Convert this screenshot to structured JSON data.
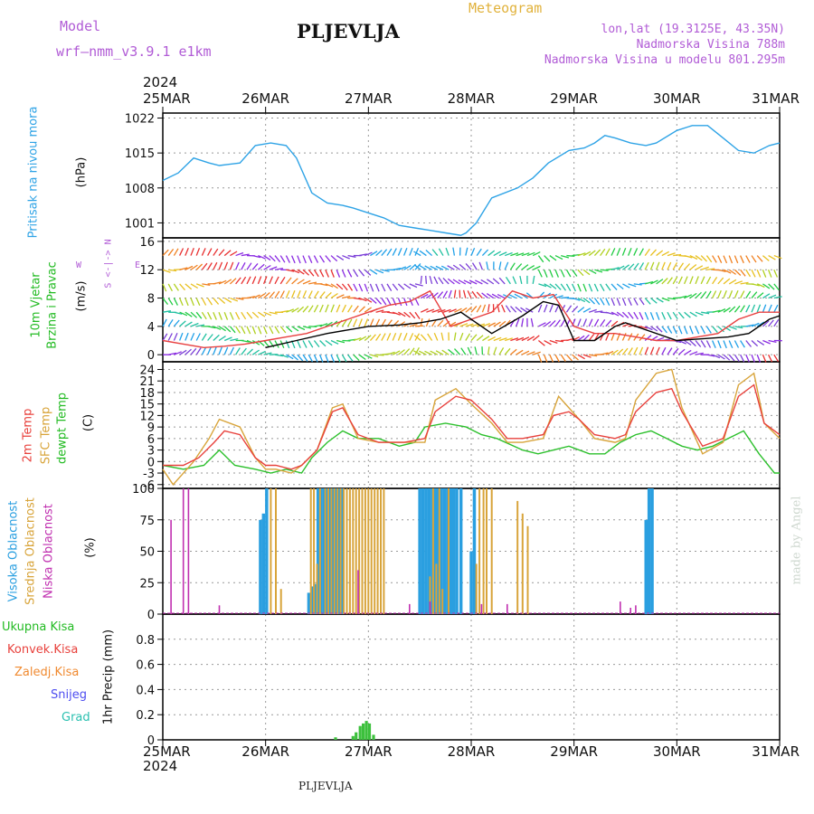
{
  "header": {
    "model_label": "Model",
    "model_name": "wrf—nmm_v3.9.1  e1km",
    "title": "PLJEVLJA",
    "meteogram": "Meteogram",
    "coords": "lon,lat (19.3125E, 43.35N)",
    "elevation": "Nadmorska Visina 788m",
    "model_elevation": "Nadmorska Visina u modelu 801.295m",
    "year_top": "2024",
    "year_bottom": "2024",
    "footer_station": "PLJEVLJA",
    "signature": "made by Angel"
  },
  "dates": [
    "25MAR",
    "26MAR",
    "27MAR",
    "28MAR",
    "29MAR",
    "30MAR",
    "31MAR"
  ],
  "labels": {
    "p1_name": "Pritisak na nivou mora",
    "p1_unit": "(hPa)",
    "p2_name_a": "10m Vjetar",
    "p2_name_b": "Brzina i Pravac",
    "p2_unit": "(m/s)",
    "compass_ns": "S <-|-> N",
    "compass_w": "W",
    "compass_e": "E",
    "p3_a": "2m Temp",
    "p3_b": "SFC Temp",
    "p3_c": "dewpt Temp",
    "p3_unit": "(C)",
    "p4_a": "Visoka Oblacnost",
    "p4_b": "Srednja Oblacnost",
    "p4_c": "Niska Oblacnost",
    "p4_unit": "(%)",
    "p5_1": "Ukupna Kisa",
    "p5_2": "Konvek.Kisa",
    "p5_3": "Zaledj.Kisa",
    "p5_4": "Snijeg",
    "p5_5": "Grad",
    "p5_unit": "1hr Precip (mm)"
  },
  "colors": {
    "pressure": "#2ea3e6",
    "t2m": "#e8413c",
    "sfc": "#d8a43a",
    "dew": "#2cc02c",
    "high_cloud": "#2a9fe0",
    "mid_cloud": "#d8a43a",
    "low_cloud": "#c030b0",
    "rain": "#3cc03c",
    "wind_speed": "#000000",
    "gust": "#e84040"
  },
  "chart_data": [
    {
      "type": "line",
      "title": "Pritisak na nivou mora",
      "ylabel": "(hPa)",
      "ylim": [
        998,
        1023
      ],
      "yticks": [
        1001,
        1008,
        1015,
        1022
      ],
      "x_unit": "days since 25MAR 00UTC",
      "series": [
        {
          "name": "pressure",
          "x": [
            0,
            0.15,
            0.3,
            0.45,
            0.55,
            0.75,
            0.9,
            1.05,
            1.2,
            1.3,
            1.45,
            1.6,
            1.75,
            1.85,
            2.0,
            2.15,
            2.3,
            2.45,
            2.6,
            2.75,
            2.9,
            2.95,
            3.05,
            3.2,
            3.45,
            3.6,
            3.75,
            3.95,
            4.1,
            4.2,
            4.3,
            4.4,
            4.55,
            4.7,
            4.8,
            5.0,
            5.15,
            5.3,
            5.45,
            5.6,
            5.75,
            5.9,
            6.0
          ],
          "y": [
            1009.5,
            1011,
            1014,
            1013,
            1012.5,
            1013,
            1016.5,
            1017,
            1016.5,
            1014,
            1007,
            1005,
            1004.5,
            1004,
            1003,
            1002,
            1000.5,
            1000,
            999.5,
            999,
            998.5,
            999,
            1001,
            1006,
            1008,
            1010,
            1013,
            1015.5,
            1016,
            1017,
            1018.5,
            1018,
            1017,
            1016.5,
            1017,
            1019.5,
            1020.5,
            1020.5,
            1018,
            1015.5,
            1015,
            1016.5,
            1017
          ]
        }
      ]
    },
    {
      "type": "line",
      "title": "10m Vjetar Brzina i Pravac",
      "ylabel": "(m/s)",
      "ylim": [
        -1,
        16.5
      ],
      "yticks": [
        0,
        4,
        8,
        12,
        16
      ],
      "series": [
        {
          "name": "wind speed",
          "x": [
            1.0,
            1.3,
            1.6,
            1.8,
            2.0,
            2.3,
            2.5,
            2.7,
            2.9,
            3.2,
            3.5,
            3.7,
            3.85,
            4.0,
            4.2,
            4.4,
            4.5,
            5.0,
            5.5,
            5.7,
            5.9,
            6.0
          ],
          "y": [
            1,
            2,
            3,
            3.5,
            4,
            4.2,
            4.5,
            5,
            6,
            3,
            5.5,
            7.5,
            7,
            2,
            2,
            4,
            4.5,
            2,
            2.5,
            3,
            5,
            5.5
          ]
        },
        {
          "name": "gust",
          "x": [
            0,
            0.2,
            0.4,
            0.6,
            0.8,
            1.0,
            1.2,
            1.4,
            1.6,
            1.8,
            2.0,
            2.2,
            2.4,
            2.6,
            2.8,
            3.0,
            3.2,
            3.4,
            3.6,
            3.8,
            4.0,
            4.2,
            4.4,
            4.6,
            4.8,
            5.0,
            5.2,
            5.4,
            5.6,
            5.8,
            6.0
          ],
          "y": [
            2,
            1.5,
            1,
            1.2,
            1.5,
            2,
            2.5,
            3,
            4,
            5,
            6,
            7,
            7.5,
            9,
            4,
            5,
            6,
            9,
            8,
            8.5,
            4,
            3,
            3,
            2.5,
            2,
            2,
            2.5,
            3,
            5,
            6,
            6
          ]
        }
      ]
    },
    {
      "type": "line",
      "title": "Temperature",
      "ylabel": "(C)",
      "ylim": [
        -7,
        26
      ],
      "yticks": [
        -6,
        -3,
        0,
        3,
        6,
        9,
        12,
        15,
        18,
        21,
        24
      ],
      "series": [
        {
          "name": "2m Temp",
          "x": [
            0,
            0.2,
            0.35,
            0.5,
            0.6,
            0.75,
            0.9,
            1.0,
            1.1,
            1.25,
            1.35,
            1.5,
            1.65,
            1.75,
            1.9,
            2.1,
            2.35,
            2.55,
            2.65,
            2.85,
            3.0,
            3.2,
            3.35,
            3.5,
            3.7,
            3.8,
            3.95,
            4.05,
            4.2,
            4.4,
            4.5,
            4.6,
            4.8,
            4.95,
            5.05,
            5.25,
            5.45,
            5.6,
            5.75,
            5.85,
            6.0
          ],
          "y": [
            -1,
            -1,
            1,
            5,
            8,
            7,
            1,
            -1,
            -1,
            -2,
            -1,
            3,
            13,
            14,
            7,
            5,
            5,
            6,
            13,
            17,
            16,
            11,
            6,
            6,
            7,
            12,
            13,
            11,
            7,
            6,
            7,
            13,
            18,
            19,
            13,
            4,
            6,
            17,
            20,
            10,
            7
          ]
        },
        {
          "name": "SFC Temp",
          "x": [
            0,
            0.1,
            0.3,
            0.45,
            0.55,
            0.75,
            0.9,
            1.0,
            1.1,
            1.25,
            1.35,
            1.5,
            1.65,
            1.75,
            1.9,
            2.1,
            2.35,
            2.55,
            2.65,
            2.85,
            3.0,
            3.2,
            3.35,
            3.5,
            3.7,
            3.85,
            3.95,
            4.05,
            4.2,
            4.4,
            4.5,
            4.6,
            4.8,
            4.95,
            5.05,
            5.25,
            5.45,
            5.6,
            5.75,
            5.85,
            6.0
          ],
          "y": [
            -2,
            -6,
            0,
            6,
            11,
            9,
            1,
            -2,
            -2,
            -3,
            -1,
            3,
            14,
            15,
            6,
            5,
            5,
            5,
            16,
            19,
            15,
            10,
            5,
            5,
            6,
            17,
            14,
            11,
            6,
            5,
            6,
            16,
            23,
            24,
            14,
            2,
            5,
            20,
            23,
            10,
            6
          ]
        },
        {
          "name": "dewpt Temp",
          "x": [
            0,
            0.2,
            0.4,
            0.55,
            0.7,
            0.9,
            1.05,
            1.2,
            1.35,
            1.45,
            1.6,
            1.75,
            1.9,
            2.1,
            2.3,
            2.45,
            2.55,
            2.75,
            2.95,
            3.1,
            3.25,
            3.5,
            3.65,
            3.8,
            3.95,
            4.15,
            4.3,
            4.45,
            4.6,
            4.75,
            4.9,
            5.05,
            5.2,
            5.35,
            5.5,
            5.65,
            5.8,
            5.95,
            6.0
          ],
          "y": [
            -1,
            -2,
            -1,
            3,
            -1,
            -2,
            -3,
            -2,
            -3,
            1,
            5,
            8,
            6,
            6,
            4,
            5,
            9,
            10,
            9,
            7,
            6,
            3,
            2,
            3,
            4,
            2,
            2,
            5,
            7,
            8,
            6,
            4,
            3,
            4,
            6,
            8,
            2,
            -3,
            -3
          ]
        }
      ]
    },
    {
      "type": "bar",
      "title": "Oblacnost",
      "ylabel": "(%)",
      "ylim": [
        0,
        100
      ],
      "yticks": [
        0,
        25,
        50,
        75,
        100
      ],
      "series": [
        {
          "name": "Visoka Oblacnost",
          "x": [
            0.95,
            0.98,
            1.01,
            1.42,
            1.45,
            1.48,
            1.51,
            1.54,
            1.57,
            1.6,
            1.63,
            1.66,
            1.69,
            1.72,
            1.75,
            2.5,
            2.53,
            2.56,
            2.59,
            2.62,
            2.65,
            2.68,
            2.71,
            2.74,
            2.77,
            2.8,
            2.83,
            2.86,
            2.9,
            3.0,
            3.03,
            4.7,
            4.73,
            4.76
          ],
          "y": [
            75,
            80,
            100,
            17,
            22,
            24,
            100,
            100,
            100,
            100,
            100,
            100,
            100,
            100,
            100,
            100,
            100,
            100,
            100,
            100,
            100,
            100,
            100,
            100,
            100,
            100,
            100,
            100,
            100,
            50,
            100,
            75,
            100,
            100
          ]
        },
        {
          "name": "Srednja Oblacnost",
          "x": [
            1.05,
            1.1,
            1.15,
            1.44,
            1.47,
            1.5,
            1.53,
            1.58,
            1.61,
            1.64,
            1.67,
            1.7,
            1.73,
            1.76,
            1.79,
            1.82,
            1.85,
            1.88,
            1.91,
            1.94,
            1.97,
            2.0,
            2.03,
            2.06,
            2.09,
            2.12,
            2.15,
            2.6,
            2.63,
            2.66,
            2.69,
            2.72,
            2.78,
            3.05,
            3.08,
            3.12,
            3.15,
            3.2,
            3.45,
            3.5,
            3.55
          ],
          "y": [
            100,
            100,
            20,
            100,
            100,
            40,
            100,
            100,
            100,
            100,
            100,
            100,
            100,
            100,
            100,
            100,
            100,
            100,
            100,
            100,
            100,
            100,
            100,
            100,
            100,
            100,
            100,
            30,
            100,
            40,
            100,
            20,
            100,
            40,
            100,
            100,
            100,
            100,
            90,
            80,
            70
          ]
        },
        {
          "name": "Niska Oblacnost",
          "x": [
            0.08,
            0.2,
            0.25,
            0.55,
            1.9,
            2.4,
            2.6,
            3.1,
            3.35,
            4.45,
            4.55,
            4.6
          ],
          "y": [
            75,
            100,
            100,
            7,
            35,
            8,
            10,
            8,
            8,
            10,
            5,
            7
          ]
        }
      ]
    },
    {
      "type": "bar",
      "title": "1hr Precip",
      "ylabel": "1hr Precip (mm)",
      "ylim": [
        0,
        1.0
      ],
      "yticks": [
        0,
        0.2,
        0.4,
        0.6,
        0.8
      ],
      "series": [
        {
          "name": "Ukupna Kisa",
          "x": [
            1.68,
            1.85,
            1.88,
            1.92,
            1.95,
            1.98,
            2.01,
            2.05
          ],
          "y": [
            0.02,
            0.03,
            0.06,
            0.11,
            0.13,
            0.15,
            0.13,
            0.04
          ]
        }
      ]
    }
  ]
}
